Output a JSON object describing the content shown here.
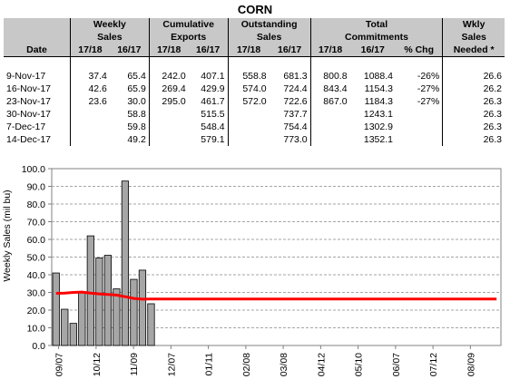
{
  "title": "CORN",
  "table": {
    "group_headers": {
      "weekly_sales_1": "Weekly",
      "weekly_sales_2": "Sales",
      "cum_exports_1": "Cumulative",
      "cum_exports_2": "Exports",
      "outstanding_1": "Outstanding",
      "outstanding_2": "Sales",
      "total_1": "Total",
      "total_2": "Commitments",
      "wkly_needed_1": "Wkly",
      "wkly_needed_2": "Sales",
      "wkly_needed_3": "Needed *"
    },
    "sub_headers": {
      "date": "Date",
      "y1": "17/18",
      "y2": "16/17",
      "pct": "% Chg"
    },
    "rows": [
      {
        "date": "9-Nov-17",
        "ws1": "37.4",
        "ws2": "65.4",
        "ce1": "242.0",
        "ce2": "407.1",
        "os1": "558.8",
        "os2": "681.3",
        "tc1": "800.8",
        "tc2": "1088.4",
        "pct": "-26%",
        "wn": "26.6"
      },
      {
        "date": "16-Nov-17",
        "ws1": "42.6",
        "ws2": "65.9",
        "ce1": "269.4",
        "ce2": "429.9",
        "os1": "574.0",
        "os2": "724.4",
        "tc1": "843.4",
        "tc2": "1154.3",
        "pct": "-27%",
        "wn": "26.2"
      },
      {
        "date": "23-Nov-17",
        "ws1": "23.6",
        "ws2": "30.0",
        "ce1": "295.0",
        "ce2": "461.7",
        "os1": "572.0",
        "os2": "722.6",
        "tc1": "867.0",
        "tc2": "1184.3",
        "pct": "-27%",
        "wn": "26.3"
      },
      {
        "date": "30-Nov-17",
        "ws1": "",
        "ws2": "58.8",
        "ce1": "",
        "ce2": "515.5",
        "os1": "",
        "os2": "737.7",
        "tc1": "",
        "tc2": "1243.1",
        "pct": "",
        "wn": "26.3"
      },
      {
        "date": "7-Dec-17",
        "ws1": "",
        "ws2": "59.8",
        "ce1": "",
        "ce2": "548.4",
        "os1": "",
        "os2": "754.4",
        "tc1": "",
        "tc2": "1302.9",
        "pct": "",
        "wn": "26.3"
      },
      {
        "date": "14-Dec-17",
        "ws1": "",
        "ws2": "49.2",
        "ce1": "",
        "ce2": "579.1",
        "os1": "",
        "os2": "773.0",
        "tc1": "",
        "tc2": "1352.1",
        "pct": "",
        "wn": "26.3"
      }
    ]
  },
  "chart_data": {
    "type": "bar",
    "ylabel": "Weekly Sales (mil bu)",
    "ylim": [
      0,
      100
    ],
    "yticks": [
      "0.0",
      "10.0",
      "20.0",
      "30.0",
      "40.0",
      "50.0",
      "60.0",
      "70.0",
      "80.0",
      "90.0",
      "100.0"
    ],
    "xtick_labels": [
      "09/07",
      "10/12",
      "11/09",
      "12/07",
      "01/11",
      "02/08",
      "03/08",
      "04/12",
      "05/10",
      "06/07",
      "07/12",
      "08/09"
    ],
    "weeks_total": 52,
    "grid": true,
    "series": [
      {
        "type": "bar",
        "color": "#a6a6a6",
        "values": [
          41,
          20.5,
          12.5,
          30,
          62,
          49.5,
          51,
          32,
          93,
          37.4,
          42.6,
          23.6
        ]
      },
      {
        "type": "line",
        "color": "#ff0000",
        "values": [
          29.5,
          29.6,
          30.0,
          30.2,
          29.6,
          29.2,
          28.8,
          28.5,
          27.6,
          26.6,
          26.2,
          26.3,
          26.3,
          26.3,
          26.3,
          26.3,
          26.3,
          26.3,
          26.3,
          26.3,
          26.3,
          26.3,
          26.3,
          26.3,
          26.3,
          26.3,
          26.3,
          26.3,
          26.3,
          26.3,
          26.3,
          26.3,
          26.3,
          26.3,
          26.3,
          26.3,
          26.3,
          26.3,
          26.3,
          26.3,
          26.3,
          26.3,
          26.3,
          26.3,
          26.3,
          26.3,
          26.3,
          26.3,
          26.3,
          26.3,
          26.3,
          26.3
        ]
      }
    ]
  }
}
